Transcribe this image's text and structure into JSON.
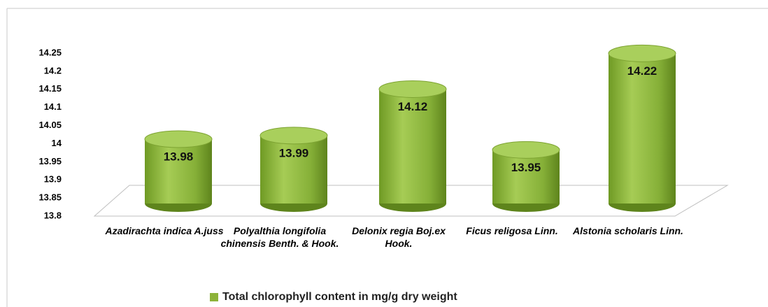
{
  "chart_data": {
    "type": "cylinder",
    "categories": [
      "Azadirachta indica A.juss",
      "Polyalthia longifolia chinensis Benth. & Hook.",
      "Delonix regia Boj.ex Hook.",
      "Ficus religosa Linn.",
      "Alstonia scholaris Linn."
    ],
    "series": [
      {
        "name": "Total chlorophyll content in mg/g dry weight",
        "color": "#8db33a",
        "values": [
          13.98,
          13.99,
          14.12,
          13.95,
          14.22
        ]
      }
    ],
    "ylim": [
      13.8,
      14.25
    ],
    "yticks": [
      13.8,
      13.85,
      13.9,
      13.95,
      14,
      14.05,
      14.1,
      14.15,
      14.2,
      14.25
    ],
    "legend": "bottom"
  }
}
